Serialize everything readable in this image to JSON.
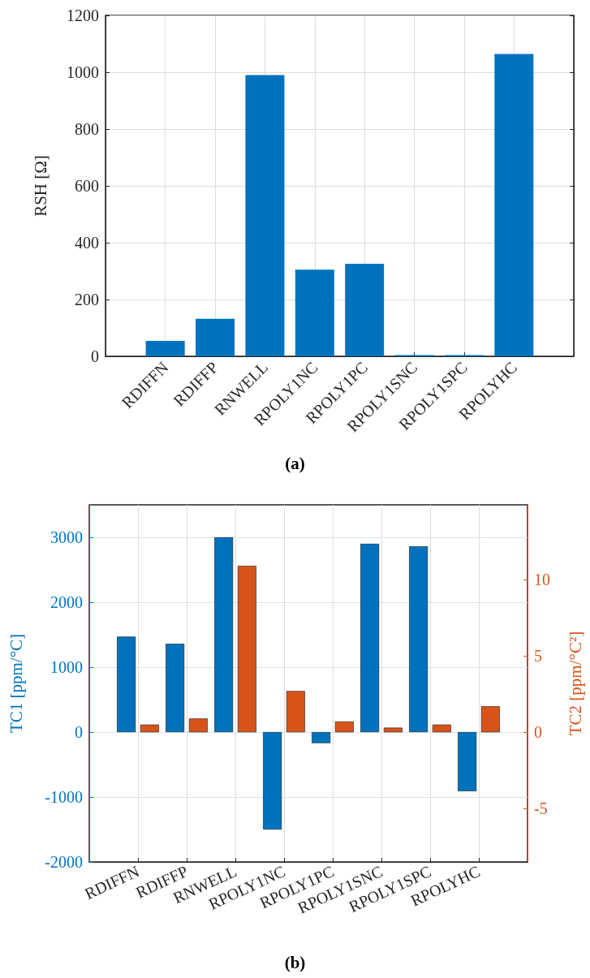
{
  "chart_data": [
    {
      "type": "bar",
      "title": "(a)",
      "ylabel": "RSH [Ω]",
      "categories": [
        "RDIFFN",
        "RDIFFP",
        "RNWELL",
        "RPOLY1NC",
        "RPOLY1PC",
        "RPOLY1SNC",
        "RPOLY1SPC",
        "RPOLYHC"
      ],
      "series": [
        {
          "color": "#0072bd",
          "values": [
            54,
            132,
            990,
            305,
            326,
            4,
            4,
            1064
          ]
        }
      ],
      "ylim": [
        0,
        1200
      ],
      "yticks": [
        0,
        200,
        400,
        600,
        800,
        1000,
        1200
      ],
      "grid": true
    },
    {
      "type": "bar",
      "title": "(b)",
      "ylabel": "TC1 [ppm/°C]",
      "y2label": "TC2 [ppm/°C²]",
      "categories": [
        "RDIFFN",
        "RDIFFP",
        "RNWELL",
        "RPOLY1NC",
        "RPOLY1PC",
        "RPOLY1SNC",
        "RPOLY1SPC",
        "RPOLYHC"
      ],
      "series": [
        {
          "color": "#0072bd",
          "values": [
            1470,
            1360,
            3000,
            -1500,
            -170,
            2900,
            2860,
            -910
          ]
        },
        {
          "color": "#d95319",
          "axis": "y2",
          "values": [
            0.5,
            0.9,
            10.9,
            2.7,
            0.7,
            0.3,
            0.5,
            1.7
          ]
        }
      ],
      "ylim": [
        -2000,
        3500
      ],
      "yticks": [
        -2000,
        -1000,
        0,
        1000,
        2000,
        3000
      ],
      "y2lim": [
        -8.5,
        14.9
      ],
      "y2ticks": [
        -5,
        0,
        5,
        10
      ],
      "grid": true
    }
  ]
}
